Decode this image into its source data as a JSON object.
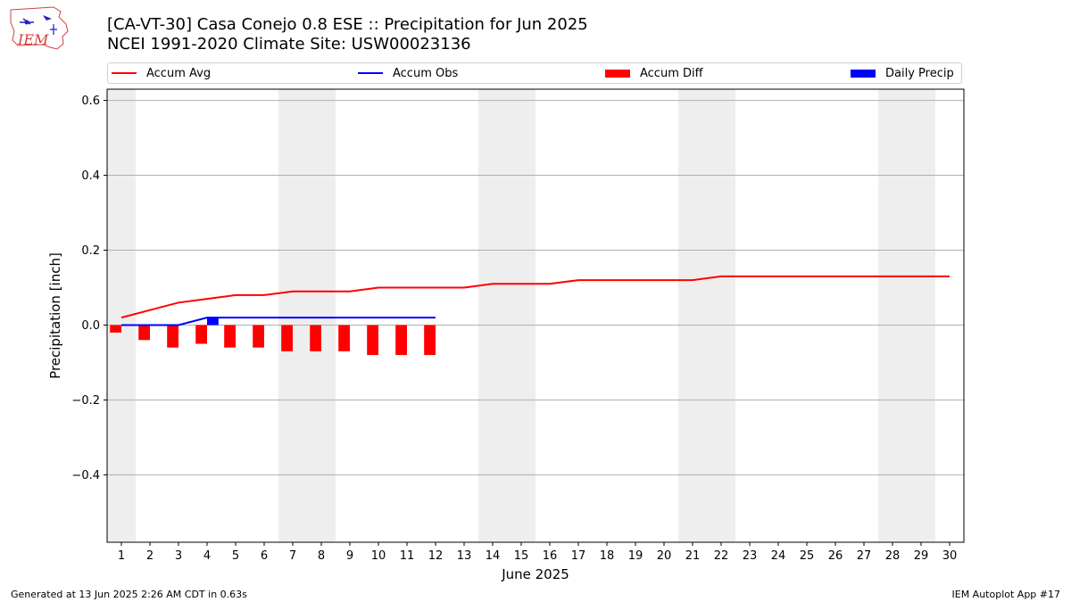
{
  "header": {
    "title": "[CA-VT-30] Casa Conejo 0.8 ESE :: Precipitation for Jun 2025",
    "subtitle": "NCEI 1991-2020 Climate Site: USW00023136",
    "logo_text": "IEM"
  },
  "legend": [
    {
      "label": "Accum Avg",
      "color": "#ff0000",
      "kind": "line"
    },
    {
      "label": "Accum Obs",
      "color": "#0000ff",
      "kind": "line"
    },
    {
      "label": "Accum Diff",
      "color": "#ff0000",
      "kind": "box"
    },
    {
      "label": "Daily Precip",
      "color": "#0000ff",
      "kind": "box"
    }
  ],
  "footer": {
    "left": "Generated at 13 Jun 2025 2:26 AM CDT in 0.63s",
    "right": "IEM Autoplot App #17"
  },
  "chart_data": {
    "type": "line",
    "xlabel": "June 2025",
    "ylabel": "Precipitation [inch]",
    "xlim": [
      0.5,
      30.5
    ],
    "ylim": [
      -0.58,
      0.63
    ],
    "yticks": [
      -0.4,
      -0.2,
      0.0,
      0.2,
      0.4,
      0.6
    ],
    "ytick_labels": [
      "−0.4",
      "−0.2",
      "0.0",
      "0.2",
      "0.4",
      "0.6"
    ],
    "x": [
      1,
      2,
      3,
      4,
      5,
      6,
      7,
      8,
      9,
      10,
      11,
      12,
      13,
      14,
      15,
      16,
      17,
      18,
      19,
      20,
      21,
      22,
      23,
      24,
      25,
      26,
      27,
      28,
      29,
      30
    ],
    "grid": "horizontal",
    "weekend_days": [
      1,
      7,
      8,
      14,
      15,
      21,
      22,
      28,
      29
    ],
    "weekend_color": "#eeeeee",
    "series": [
      {
        "name": "Accum Avg",
        "kind": "line",
        "color": "#ff0000",
        "x": [
          1,
          2,
          3,
          4,
          5,
          6,
          7,
          8,
          9,
          10,
          11,
          12,
          13,
          14,
          15,
          16,
          17,
          18,
          19,
          20,
          21,
          22,
          23,
          24,
          25,
          26,
          27,
          28,
          29,
          30
        ],
        "values": [
          0.02,
          0.04,
          0.06,
          0.07,
          0.08,
          0.08,
          0.09,
          0.09,
          0.09,
          0.1,
          0.1,
          0.1,
          0.1,
          0.11,
          0.11,
          0.11,
          0.12,
          0.12,
          0.12,
          0.12,
          0.12,
          0.13,
          0.13,
          0.13,
          0.13,
          0.13,
          0.13,
          0.13,
          0.13,
          0.13
        ]
      },
      {
        "name": "Accum Obs",
        "kind": "line",
        "color": "#0000ff",
        "x": [
          1,
          2,
          3,
          4,
          5,
          6,
          7,
          8,
          9,
          10,
          11,
          12
        ],
        "values": [
          0.0,
          0.0,
          0.0,
          0.02,
          0.02,
          0.02,
          0.02,
          0.02,
          0.02,
          0.02,
          0.02,
          0.02
        ]
      },
      {
        "name": "Accum Diff",
        "kind": "bar",
        "color": "#ff0000",
        "offset": -0.2,
        "x": [
          1,
          2,
          3,
          4,
          5,
          6,
          7,
          8,
          9,
          10,
          11,
          12
        ],
        "values": [
          -0.02,
          -0.04,
          -0.06,
          -0.05,
          -0.06,
          -0.06,
          -0.07,
          -0.07,
          -0.07,
          -0.08,
          -0.08,
          -0.08
        ]
      },
      {
        "name": "Daily Precip",
        "kind": "bar",
        "color": "#0000ff",
        "offset": 0.2,
        "x": [
          1,
          2,
          3,
          4,
          5,
          6,
          7,
          8,
          9,
          10,
          11,
          12
        ],
        "values": [
          0,
          0,
          0,
          0.02,
          0,
          0,
          0,
          0,
          0,
          0,
          0,
          0
        ]
      }
    ]
  }
}
